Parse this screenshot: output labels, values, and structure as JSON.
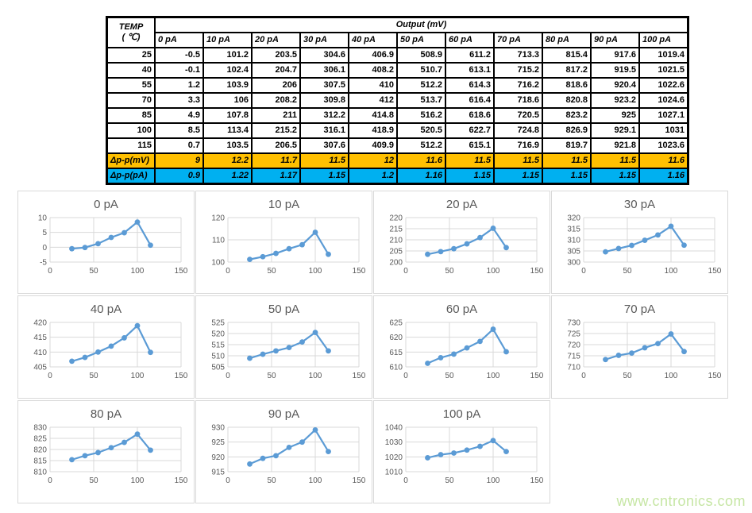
{
  "table": {
    "corner_title": "TEMP",
    "corner_subtitle": "( ℃)",
    "output_header": "Output (mV)",
    "columns": [
      "0 pA",
      "10 pA",
      "20 pA",
      "30 pA",
      "40 pA",
      "50 pA",
      "60 pA",
      "70 pA",
      "80 pA",
      "90 pA",
      "100 pA"
    ],
    "rows": [
      {
        "temp": "25",
        "values": [
          "-0.5",
          "101.2",
          "203.5",
          "304.6",
          "406.9",
          "508.9",
          "611.2",
          "713.3",
          "815.4",
          "917.6",
          "1019.4"
        ]
      },
      {
        "temp": "40",
        "values": [
          "-0.1",
          "102.4",
          "204.7",
          "306.1",
          "408.2",
          "510.7",
          "613.1",
          "715.2",
          "817.2",
          "919.5",
          "1021.5"
        ]
      },
      {
        "temp": "55",
        "values": [
          "1.2",
          "103.9",
          "206",
          "307.5",
          "410",
          "512.2",
          "614.3",
          "716.2",
          "818.6",
          "920.4",
          "1022.6"
        ]
      },
      {
        "temp": "70",
        "values": [
          "3.3",
          "106",
          "208.2",
          "309.8",
          "412",
          "513.7",
          "616.4",
          "718.6",
          "820.8",
          "923.2",
          "1024.6"
        ]
      },
      {
        "temp": "85",
        "values": [
          "4.9",
          "107.8",
          "211",
          "312.2",
          "414.8",
          "516.2",
          "618.6",
          "720.5",
          "823.2",
          "925",
          "1027.1"
        ]
      },
      {
        "temp": "100",
        "values": [
          "8.5",
          "113.4",
          "215.2",
          "316.1",
          "418.9",
          "520.5",
          "622.7",
          "724.8",
          "826.9",
          "929.1",
          "1031"
        ]
      },
      {
        "temp": "115",
        "values": [
          "0.7",
          "103.5",
          "206.5",
          "307.6",
          "409.9",
          "512.2",
          "615.1",
          "716.9",
          "819.7",
          "921.8",
          "1023.6"
        ]
      }
    ],
    "delta_rows": [
      {
        "label": "Δp-p(mV)",
        "bg": "#FFC000",
        "values": [
          "9",
          "12.2",
          "11.7",
          "11.5",
          "12",
          "11.6",
          "11.5",
          "11.5",
          "11.5",
          "11.5",
          "11.6"
        ]
      },
      {
        "label": "Δp-p(pA)",
        "bg": "#00B0F0",
        "values": [
          "0.9",
          "1.22",
          "1.17",
          "1.15",
          "1.2",
          "1.16",
          "1.15",
          "1.15",
          "1.15",
          "1.15",
          "1.16"
        ]
      }
    ]
  },
  "chart_data": [
    {
      "type": "line",
      "title": "0 pA",
      "x": [
        25,
        40,
        55,
        70,
        85,
        100,
        115
      ],
      "values": [
        -0.5,
        -0.1,
        1.2,
        3.3,
        4.9,
        8.5,
        0.7
      ],
      "xlim": [
        0,
        150
      ],
      "ylim": [
        -5,
        10
      ],
      "x_ticks": [
        0,
        50,
        100,
        150
      ],
      "y_ticks": [
        -5,
        0,
        5,
        10
      ],
      "grid": true,
      "legend": "none"
    },
    {
      "type": "line",
      "title": "10 pA",
      "x": [
        25,
        40,
        55,
        70,
        85,
        100,
        115
      ],
      "values": [
        101.2,
        102.4,
        103.9,
        106,
        107.8,
        113.4,
        103.5
      ],
      "xlim": [
        0,
        150
      ],
      "ylim": [
        100,
        120
      ],
      "x_ticks": [
        0,
        50,
        100,
        150
      ],
      "y_ticks": [
        100,
        110,
        120
      ],
      "grid": true,
      "legend": "none"
    },
    {
      "type": "line",
      "title": "20 pA",
      "x": [
        25,
        40,
        55,
        70,
        85,
        100,
        115
      ],
      "values": [
        203.5,
        204.7,
        206,
        208.2,
        211,
        215.2,
        206.5
      ],
      "xlim": [
        0,
        150
      ],
      "ylim": [
        200,
        220
      ],
      "x_ticks": [
        0,
        50,
        100,
        150
      ],
      "y_ticks": [
        200,
        205,
        210,
        215,
        220
      ],
      "grid": true,
      "legend": "none"
    },
    {
      "type": "line",
      "title": "30 pA",
      "x": [
        25,
        40,
        55,
        70,
        85,
        100,
        115
      ],
      "values": [
        304.6,
        306.1,
        307.5,
        309.8,
        312.2,
        316.1,
        307.6
      ],
      "xlim": [
        0,
        150
      ],
      "ylim": [
        300,
        320
      ],
      "x_ticks": [
        0,
        50,
        100,
        150
      ],
      "y_ticks": [
        300,
        305,
        310,
        315,
        320
      ],
      "grid": true,
      "legend": "none"
    },
    {
      "type": "line",
      "title": "40 pA",
      "x": [
        25,
        40,
        55,
        70,
        85,
        100,
        115
      ],
      "values": [
        406.9,
        408.2,
        410,
        412,
        414.8,
        418.9,
        409.9
      ],
      "xlim": [
        0,
        150
      ],
      "ylim": [
        405,
        420
      ],
      "x_ticks": [
        0,
        50,
        100,
        150
      ],
      "y_ticks": [
        405,
        410,
        415,
        420
      ],
      "grid": true,
      "legend": "none"
    },
    {
      "type": "line",
      "title": "50 pA",
      "x": [
        25,
        40,
        55,
        70,
        85,
        100,
        115
      ],
      "values": [
        508.9,
        510.7,
        512.2,
        513.7,
        516.2,
        520.5,
        512.2
      ],
      "xlim": [
        0,
        150
      ],
      "ylim": [
        505,
        525
      ],
      "x_ticks": [
        0,
        50,
        100,
        150
      ],
      "y_ticks": [
        505,
        510,
        515,
        520,
        525
      ],
      "grid": true,
      "legend": "none"
    },
    {
      "type": "line",
      "title": "60 pA",
      "x": [
        25,
        40,
        55,
        70,
        85,
        100,
        115
      ],
      "values": [
        611.2,
        613.1,
        614.3,
        616.4,
        618.6,
        622.7,
        615.1
      ],
      "xlim": [
        0,
        150
      ],
      "ylim": [
        610,
        625
      ],
      "x_ticks": [
        0,
        50,
        100,
        150
      ],
      "y_ticks": [
        610,
        615,
        620,
        625
      ],
      "grid": true,
      "legend": "none"
    },
    {
      "type": "line",
      "title": "70 pA",
      "x": [
        25,
        40,
        55,
        70,
        85,
        100,
        115
      ],
      "values": [
        713.3,
        715.2,
        716.2,
        718.6,
        720.5,
        724.8,
        716.9
      ],
      "xlim": [
        0,
        150
      ],
      "ylim": [
        710,
        730
      ],
      "x_ticks": [
        0,
        50,
        100,
        150
      ],
      "y_ticks": [
        710,
        715,
        720,
        725,
        730
      ],
      "grid": true,
      "legend": "none"
    },
    {
      "type": "line",
      "title": "80 pA",
      "x": [
        25,
        40,
        55,
        70,
        85,
        100,
        115
      ],
      "values": [
        815.4,
        817.2,
        818.6,
        820.8,
        823.2,
        826.9,
        819.7
      ],
      "xlim": [
        0,
        150
      ],
      "ylim": [
        810,
        830
      ],
      "x_ticks": [
        0,
        50,
        100,
        150
      ],
      "y_ticks": [
        810,
        815,
        820,
        825,
        830
      ],
      "grid": true,
      "legend": "none"
    },
    {
      "type": "line",
      "title": "90 pA",
      "x": [
        25,
        40,
        55,
        70,
        85,
        100,
        115
      ],
      "values": [
        917.6,
        919.5,
        920.4,
        923.2,
        925,
        929.1,
        921.8
      ],
      "xlim": [
        0,
        150
      ],
      "ylim": [
        915,
        930
      ],
      "x_ticks": [
        0,
        50,
        100,
        150
      ],
      "y_ticks": [
        915,
        920,
        925,
        930
      ],
      "grid": true,
      "legend": "none"
    },
    {
      "type": "line",
      "title": "100 pA",
      "x": [
        25,
        40,
        55,
        70,
        85,
        100,
        115
      ],
      "values": [
        1019.4,
        1021.5,
        1022.6,
        1024.6,
        1027.1,
        1031,
        1023.6
      ],
      "xlim": [
        0,
        150
      ],
      "ylim": [
        1010,
        1040
      ],
      "x_ticks": [
        0,
        50,
        100,
        150
      ],
      "y_ticks": [
        1010,
        1020,
        1030,
        1040
      ],
      "grid": true,
      "legend": "none"
    }
  ],
  "watermark": "www.cntronics.com",
  "colors": {
    "line": "#5B9BD5",
    "grid": "#D9D9D9",
    "axis_text": "#595959",
    "title_text": "#595959",
    "delta_mv_bg": "#FFC000",
    "delta_pa_bg": "#00B0F0",
    "watermark": "#c6e6a4"
  }
}
